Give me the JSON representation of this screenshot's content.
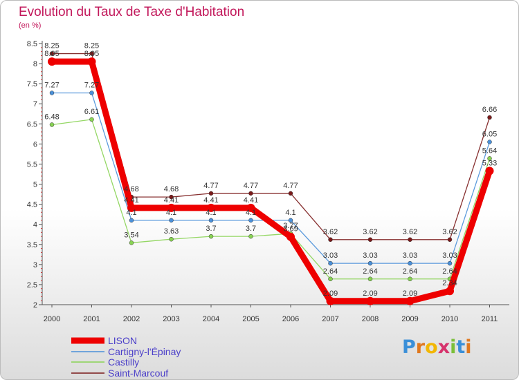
{
  "header": {
    "title": "Evolution du Taux de Taxe d'Habitation",
    "subtitle": "(en %)"
  },
  "logo": {
    "text": "Proxiti",
    "letters": [
      {
        "ch": "P",
        "color": "#3a8fd8"
      },
      {
        "ch": "r",
        "color": "#e0781e"
      },
      {
        "ch": "o",
        "color": "#f2b705"
      },
      {
        "ch": "x",
        "color": "#d6336c"
      },
      {
        "ch": "i",
        "color": "#7bbf3a"
      },
      {
        "ch": "t",
        "color": "#3a8fd8"
      },
      {
        "ch": "i",
        "color": "#e0781e"
      }
    ]
  },
  "chart_data": {
    "type": "line",
    "title": "Evolution du Taux de Taxe d'Habitation",
    "ylabel": "(en %)",
    "xlabel": "",
    "x": [
      "2000",
      "2001",
      "2002",
      "2003",
      "2004",
      "2005",
      "2006",
      "2007",
      "2008",
      "2009",
      "2010",
      "2011"
    ],
    "ylim": [
      2,
      8.5
    ],
    "yticks": [
      "2",
      "2.5",
      "3",
      "3.5",
      "4",
      "4.5",
      "5",
      "5.5",
      "6",
      "6.5",
      "7",
      "7.5",
      "8",
      "8.5"
    ],
    "legend_position": "bottom-left",
    "series": [
      {
        "name": "LISON",
        "color": "#ee0000",
        "values": [
          8.05,
          8.05,
          4.41,
          4.41,
          4.41,
          4.41,
          3.69,
          2.09,
          2.09,
          2.09,
          2.34,
          5.33
        ],
        "labels": [
          "8.05",
          "8.05",
          "4.41",
          "4.41",
          "4.41",
          "4.41",
          "3.69",
          "2.09",
          "2.09",
          "2.09",
          "2.34",
          "5.33"
        ]
      },
      {
        "name": "Cartigny-l'Épinay",
        "color": "#4a90d9",
        "values": [
          7.27,
          7.27,
          4.1,
          4.1,
          4.1,
          4.1,
          4.1,
          3.03,
          3.03,
          3.03,
          3.03,
          6.05
        ],
        "labels": [
          "7.27",
          "7.27",
          "4.1",
          "4.1",
          "4.1",
          "4.1",
          "4.1",
          "3.03",
          "3.03",
          "3.03",
          "3.03",
          "6.05"
        ]
      },
      {
        "name": "Castilly",
        "color": "#88d353",
        "values": [
          6.48,
          6.61,
          3.54,
          3.63,
          3.7,
          3.7,
          3.77,
          2.64,
          2.64,
          2.64,
          2.64,
          5.64
        ],
        "labels": [
          "6.48",
          "6.61",
          "3.54",
          "3.63",
          "3.7",
          "3.7",
          "3.77",
          "2.64",
          "2.64",
          "2.64",
          "2.64",
          "5.64"
        ]
      },
      {
        "name": "Saint-Marcouf",
        "color": "#7a1a1a",
        "values": [
          8.25,
          8.25,
          4.68,
          4.68,
          4.77,
          4.77,
          4.77,
          3.62,
          3.62,
          3.62,
          3.62,
          6.66
        ],
        "labels": [
          "8.25",
          "8.25",
          "4.68",
          "4.68",
          "4.77",
          "4.77",
          "4.77",
          "3.62",
          "3.62",
          "3.62",
          "3.62",
          "6.66"
        ]
      }
    ]
  }
}
